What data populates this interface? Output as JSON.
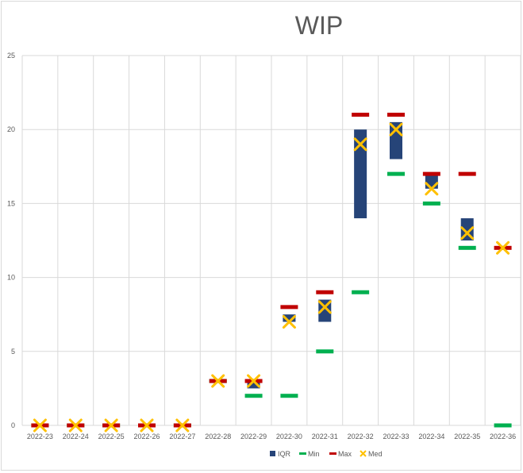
{
  "chart_data": {
    "type": "box",
    "title": "WIP",
    "xlabel": "",
    "ylabel": "",
    "ylim": [
      0,
      25
    ],
    "yticks": [
      0,
      5,
      10,
      15,
      20,
      25
    ],
    "grid": true,
    "legend_position": "bottom",
    "categories": [
      "2022-23",
      "2022-24",
      "2022-25",
      "2022-26",
      "2022-27",
      "2022-28",
      "2022-29",
      "2022-30",
      "2022-31",
      "2022-32",
      "2022-33",
      "2022-34",
      "2022-35",
      "2022-36"
    ],
    "series": [
      {
        "name": "IQR",
        "color": "#264478",
        "q1": [
          0,
          0,
          0,
          0,
          0,
          3,
          2.5,
          7,
          7,
          14,
          18,
          16,
          12.5,
          12
        ],
        "q3": [
          0,
          0,
          0,
          0,
          0,
          3,
          3,
          7.5,
          8.5,
          20,
          20.5,
          17,
          14,
          12
        ]
      },
      {
        "name": "Min",
        "color": "#00b050",
        "values": [
          0,
          0,
          0,
          0,
          0,
          3,
          2,
          2,
          5,
          9,
          17,
          15,
          12,
          0
        ]
      },
      {
        "name": "Max",
        "color": "#c00000",
        "values": [
          0,
          0,
          0,
          0,
          0,
          3,
          3,
          8,
          9,
          21,
          21,
          17,
          17,
          12
        ]
      },
      {
        "name": "Med",
        "color": "#ffc000",
        "values": [
          0,
          0,
          0,
          0,
          0,
          3,
          3,
          7,
          8,
          19,
          20,
          16,
          13,
          12
        ]
      }
    ]
  }
}
